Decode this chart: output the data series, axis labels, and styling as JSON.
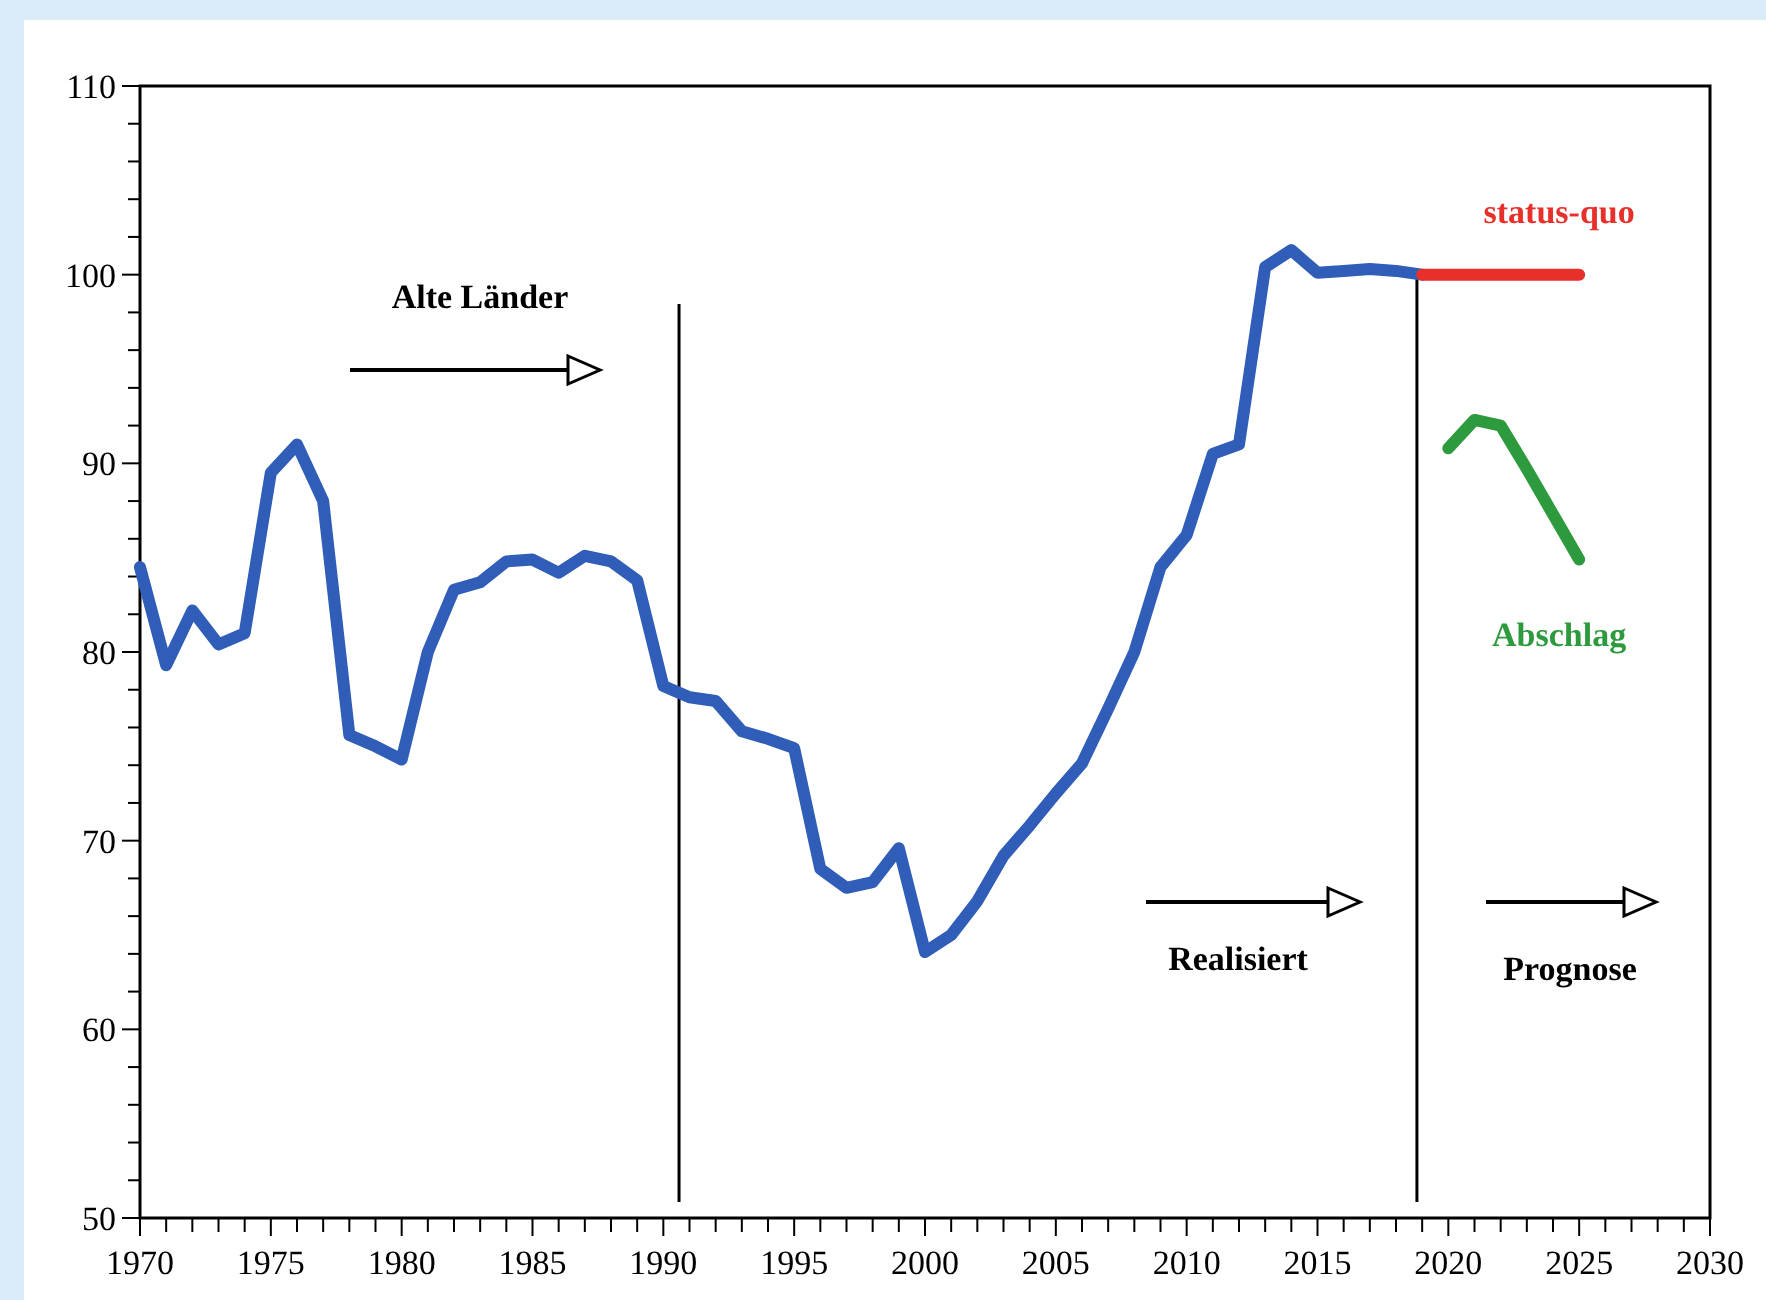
{
  "chart_data": {
    "type": "line",
    "xlim": [
      1970,
      2030
    ],
    "ylim": [
      50,
      110
    ],
    "xticks": [
      1970,
      {
        "value": 1971,
        "label": null
      },
      {
        "value": 1972,
        "label": null
      },
      {
        "value": 1973,
        "label": null
      },
      {
        "value": 1974,
        "label": null
      },
      1975,
      {
        "value": 1976,
        "label": null
      },
      {
        "value": 1977,
        "label": null
      },
      {
        "value": 1978,
        "label": null
      },
      {
        "value": 1979,
        "label": null
      },
      1980,
      {
        "value": 1981,
        "label": null
      },
      {
        "value": 1982,
        "label": null
      },
      {
        "value": 1983,
        "label": null
      },
      {
        "value": 1984,
        "label": null
      },
      1985,
      {
        "value": 1986,
        "label": null
      },
      {
        "value": 1987,
        "label": null
      },
      {
        "value": 1988,
        "label": null
      },
      {
        "value": 1989,
        "label": null
      },
      1990,
      {
        "value": 1991,
        "label": null
      },
      {
        "value": 1992,
        "label": null
      },
      {
        "value": 1993,
        "label": null
      },
      {
        "value": 1994,
        "label": null
      },
      1995,
      {
        "value": 1996,
        "label": null
      },
      {
        "value": 1997,
        "label": null
      },
      {
        "value": 1998,
        "label": null
      },
      {
        "value": 1999,
        "label": null
      },
      2000,
      {
        "value": 2001,
        "label": null
      },
      {
        "value": 2002,
        "label": null
      },
      {
        "value": 2003,
        "label": null
      },
      {
        "value": 2004,
        "label": null
      },
      2005,
      {
        "value": 2006,
        "label": null
      },
      {
        "value": 2007,
        "label": null
      },
      {
        "value": 2008,
        "label": null
      },
      {
        "value": 2009,
        "label": null
      },
      2010,
      {
        "value": 2011,
        "label": null
      },
      {
        "value": 2012,
        "label": null
      },
      {
        "value": 2013,
        "label": null
      },
      {
        "value": 2014,
        "label": null
      },
      2015,
      {
        "value": 2016,
        "label": null
      },
      {
        "value": 2017,
        "label": null
      },
      {
        "value": 2018,
        "label": null
      },
      {
        "value": 2019,
        "label": null
      },
      2020,
      {
        "value": 2021,
        "label": null
      },
      {
        "value": 2022,
        "label": null
      },
      {
        "value": 2023,
        "label": null
      },
      {
        "value": 2024,
        "label": null
      },
      2025,
      {
        "value": 2026,
        "label": null
      },
      {
        "value": 2027,
        "label": null
      },
      {
        "value": 2028,
        "label": null
      },
      {
        "value": 2029,
        "label": null
      },
      2030
    ],
    "yticks": [
      50,
      {
        "value": 52,
        "label": null
      },
      {
        "value": 54,
        "label": null
      },
      {
        "value": 56,
        "label": null
      },
      {
        "value": 58,
        "label": null
      },
      60,
      {
        "value": 62,
        "label": null
      },
      {
        "value": 64,
        "label": null
      },
      {
        "value": 66,
        "label": null
      },
      {
        "value": 68,
        "label": null
      },
      70,
      {
        "value": 72,
        "label": null
      },
      {
        "value": 74,
        "label": null
      },
      {
        "value": 76,
        "label": null
      },
      {
        "value": 78,
        "label": null
      },
      80,
      {
        "value": 82,
        "label": null
      },
      {
        "value": 84,
        "label": null
      },
      {
        "value": 86,
        "label": null
      },
      {
        "value": 88,
        "label": null
      },
      90,
      {
        "value": 92,
        "label": null
      },
      {
        "value": 94,
        "label": null
      },
      {
        "value": 96,
        "label": null
      },
      {
        "value": 98,
        "label": null
      },
      100,
      {
        "value": 102,
        "label": null
      },
      {
        "value": 104,
        "label": null
      },
      {
        "value": 106,
        "label": null
      },
      {
        "value": 108,
        "label": null
      },
      110
    ],
    "series": [
      {
        "color": "#2f5db8",
        "x": [
          1970,
          1971,
          1972,
          1973,
          1974,
          1975,
          1976,
          1977,
          1978,
          1979,
          1980,
          1981,
          1982,
          1983,
          1984,
          1985,
          1986,
          1987,
          1988,
          1989,
          1990,
          1991,
          1992,
          1993,
          1994,
          1995,
          1996,
          1997,
          1998,
          1999,
          2000,
          2001,
          2002,
          2003,
          2004,
          2005,
          2006,
          2007,
          2008,
          2009,
          2010,
          2011,
          2012,
          2013,
          2014,
          2015,
          2016,
          2017,
          2018,
          2019
        ],
        "values": [
          84.5,
          79.3,
          82.2,
          80.4,
          81.0,
          89.5,
          91.0,
          88.0,
          75.6,
          75.0,
          74.3,
          80.0,
          83.3,
          83.7,
          84.8,
          84.9,
          84.2,
          85.1,
          84.8,
          83.8,
          78.2,
          77.6,
          77.4,
          75.8,
          75.4,
          74.9,
          68.5,
          67.5,
          67.8,
          69.6,
          64.1,
          65.0,
          66.8,
          69.2,
          70.8,
          72.5,
          74.1,
          77.0,
          80.0,
          84.5,
          86.2,
          90.5,
          91.0,
          100.4,
          101.3,
          100.1,
          100.2,
          100.3,
          100.2,
          100.0
        ]
      },
      {
        "name": "status-quo",
        "color": "#e8302a",
        "x": [
          2019,
          2025
        ],
        "values": [
          100,
          100
        ]
      },
      {
        "name": "Abschlag",
        "color": "#2e9a3e",
        "x": [
          2020,
          2021,
          2022,
          2023,
          2024,
          2025
        ],
        "values": [
          90.8,
          92.3,
          92.0,
          89.7,
          87.3,
          84.9
        ]
      }
    ],
    "ref_lines": [
      {
        "axis": "x",
        "value": 1990.6,
        "color": "#000000"
      },
      {
        "axis": "x",
        "value": 2018.8,
        "color": "#000000"
      }
    ],
    "annotations": [
      "Alte Länder",
      "Realisiert",
      "Prognose"
    ],
    "grid": false,
    "marker": "none",
    "line_style": "solid"
  }
}
